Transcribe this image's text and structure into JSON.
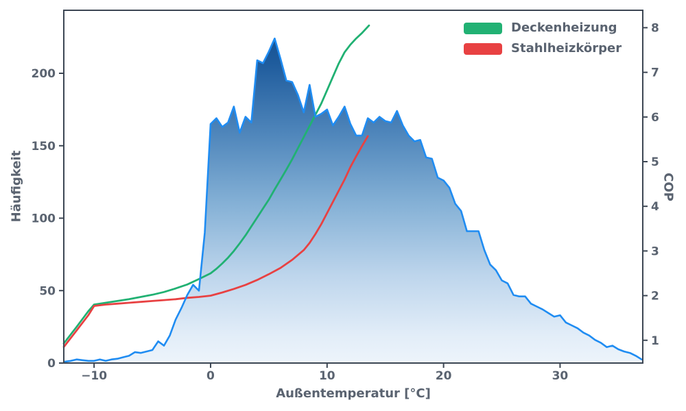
{
  "figure": {
    "background": "#ffffff",
    "spine_color": "#3c4653",
    "text_color": "#5a6370"
  },
  "chart_data": {
    "type": "area",
    "title": "",
    "xlabel": "Außentemperatur [°C]",
    "ylabel_left": "Häufigkeit",
    "ylabel_right": "COP",
    "grid": false,
    "legend_position": "upper right",
    "xlim": [
      -12.6,
      37.1
    ],
    "ylim_left": [
      0,
      243.5
    ],
    "ylim_right": [
      0.49,
      8.39
    ],
    "xticks": [
      {
        "v": -10,
        "label": "−10"
      },
      {
        "v": 0,
        "label": "0"
      },
      {
        "v": 10,
        "label": "10"
      },
      {
        "v": 20,
        "label": "20"
      },
      {
        "v": 30,
        "label": "30"
      }
    ],
    "yticks_left": [
      {
        "v": 0,
        "label": "0"
      },
      {
        "v": 50,
        "label": "50"
      },
      {
        "v": 100,
        "label": "100"
      },
      {
        "v": 150,
        "label": "150"
      },
      {
        "v": 200,
        "label": "200"
      }
    ],
    "yticks_right": [
      {
        "v": 1,
        "label": "1"
      },
      {
        "v": 2,
        "label": "2"
      },
      {
        "v": 3,
        "label": "3"
      },
      {
        "v": 4,
        "label": "4"
      },
      {
        "v": 5,
        "label": "5"
      },
      {
        "v": 6,
        "label": "6"
      },
      {
        "v": 7,
        "label": "7"
      },
      {
        "v": 8,
        "label": "8"
      }
    ],
    "histogram": {
      "name": "Häufigkeit",
      "axis": "left",
      "line_color": "#1f8cf2",
      "fill_gradient": [
        "#0d4b8b",
        "#1f5c9d",
        "#4f86bb",
        "#85b1d6",
        "#bdd5ec",
        "#e2edf8",
        "#edf4fb"
      ],
      "x": [
        -12.5,
        -12,
        -11.5,
        -11,
        -10.5,
        -10,
        -9.5,
        -9,
        -8.5,
        -8,
        -7.5,
        -7,
        -6.5,
        -6,
        -5.5,
        -5,
        -4.5,
        -4,
        -3.5,
        -3,
        -2.5,
        -2,
        -1.5,
        -1,
        -0.5,
        0,
        0.5,
        1,
        1.5,
        2,
        2.5,
        3,
        3.5,
        4,
        4.5,
        5,
        5.5,
        6,
        6.5,
        7,
        7.5,
        8,
        8.5,
        9,
        9.5,
        10,
        10.5,
        11,
        11.5,
        12,
        12.5,
        13,
        13.5,
        14,
        14.5,
        15,
        15.5,
        16,
        16.5,
        17,
        17.5,
        18,
        18.5,
        19,
        19.5,
        20,
        20.5,
        21,
        21.5,
        22,
        22.5,
        23,
        23.5,
        24,
        24.5,
        25,
        25.5,
        26,
        26.5,
        27,
        27.5,
        28,
        28.5,
        29,
        29.5,
        30,
        30.5,
        31,
        31.5,
        32,
        32.5,
        33,
        33.5,
        34,
        34.5,
        35,
        35.5,
        36,
        36.5,
        37
      ],
      "values": [
        1,
        1.5,
        2.5,
        2,
        1.5,
        1.5,
        2.5,
        1.5,
        2.5,
        3,
        4,
        5,
        7.5,
        7,
        8,
        9,
        15,
        12,
        19,
        30,
        38,
        47,
        54,
        50,
        90,
        165,
        169,
        163,
        166,
        177,
        159,
        170,
        166,
        209,
        207,
        215,
        224,
        210,
        195,
        194,
        185,
        173,
        192,
        170,
        172,
        175,
        164,
        170,
        177,
        165,
        157,
        157,
        169,
        166,
        170,
        167,
        166,
        174,
        164,
        157,
        153,
        154,
        142,
        141,
        128,
        126,
        121,
        110,
        105,
        91,
        91,
        91,
        78,
        68,
        64,
        57,
        55,
        47,
        46,
        46,
        41,
        39,
        37,
        34.5,
        32,
        33,
        28,
        26,
        24,
        21,
        19,
        16,
        14,
        11,
        12,
        9.5,
        8,
        7,
        5,
        2.5
      ]
    },
    "series": [
      {
        "name": "Deckenheizung",
        "axis": "right",
        "color": "#21b173",
        "x": [
          -12.6,
          -11.5,
          -10.5,
          -10,
          -9,
          -8,
          -7,
          -6,
          -5,
          -4,
          -3,
          -2,
          -1,
          0,
          0.5,
          1,
          1.5,
          2,
          2.5,
          3,
          3.5,
          4,
          4.5,
          5,
          5.5,
          6,
          6.5,
          7,
          7.5,
          8,
          8.5,
          9,
          9.5,
          10,
          10.5,
          11,
          11.5,
          12,
          12.5,
          13,
          13.6
        ],
        "values": [
          0.93,
          1.3,
          1.65,
          1.8,
          1.84,
          1.88,
          1.92,
          1.97,
          2.02,
          2.08,
          2.16,
          2.25,
          2.37,
          2.5,
          2.6,
          2.72,
          2.85,
          3.0,
          3.17,
          3.35,
          3.55,
          3.75,
          3.95,
          4.15,
          4.38,
          4.6,
          4.82,
          5.05,
          5.3,
          5.55,
          5.8,
          6.05,
          6.3,
          6.6,
          6.9,
          7.2,
          7.45,
          7.62,
          7.76,
          7.88,
          8.05
        ]
      },
      {
        "name": "Stahlheizkörper",
        "axis": "right",
        "color": "#e84142",
        "x": [
          -12.6,
          -11.5,
          -10.5,
          -10,
          -9,
          -8,
          -7,
          -6,
          -5,
          -4,
          -3,
          -2,
          -1,
          0,
          1,
          2,
          3,
          4,
          5,
          6,
          7,
          8,
          8.5,
          9,
          9.5,
          10,
          10.5,
          11,
          11.5,
          12,
          12.5,
          13,
          13.5
        ],
        "values": [
          0.85,
          1.22,
          1.56,
          1.77,
          1.8,
          1.82,
          1.84,
          1.86,
          1.88,
          1.9,
          1.92,
          1.95,
          1.97,
          2.0,
          2.07,
          2.15,
          2.24,
          2.35,
          2.48,
          2.62,
          2.8,
          3.02,
          3.18,
          3.38,
          3.6,
          3.85,
          4.1,
          4.35,
          4.6,
          4.88,
          5.12,
          5.35,
          5.57
        ]
      }
    ]
  }
}
